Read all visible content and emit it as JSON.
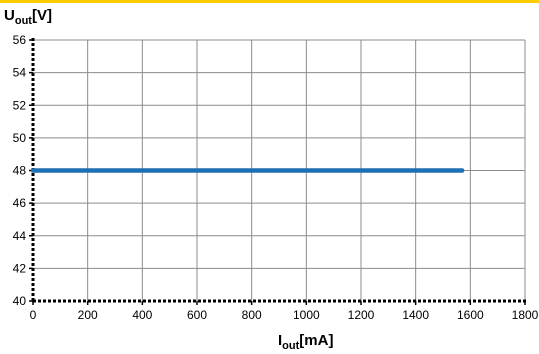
{
  "accent_color": "#FFCC00",
  "chart_data": {
    "type": "line",
    "ylabel": {
      "main": "U",
      "sub": "out",
      "unit": "[V]"
    },
    "xlabel": {
      "main": "I",
      "sub": "out",
      "unit": "[mA]"
    },
    "xlim": [
      0,
      1800
    ],
    "ylim": [
      40,
      56
    ],
    "x_ticks": [
      "0",
      "200",
      "400",
      "600",
      "800",
      "1000",
      "1200",
      "1400",
      "1600",
      "1800"
    ],
    "y_ticks": [
      "40",
      "42",
      "44",
      "46",
      "48",
      "50",
      "52",
      "54",
      "56"
    ],
    "grid": true,
    "series": [
      {
        "x": [
          0,
          1570
        ],
        "y": [
          48,
          48
        ],
        "color": "#1F6FB5"
      }
    ]
  }
}
